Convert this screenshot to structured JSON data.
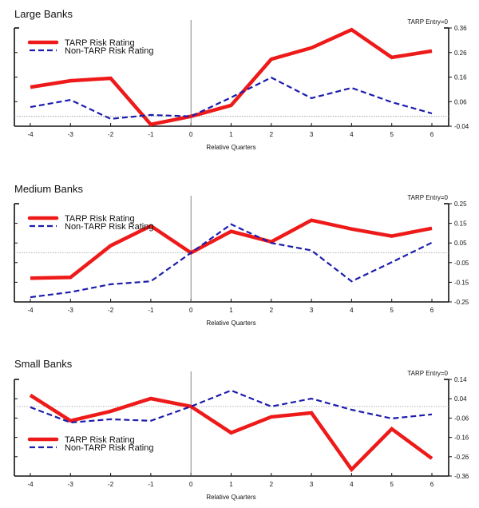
{
  "chart_data": [
    {
      "type": "line",
      "title": "Large Banks",
      "xlabel": "Relative Quarters",
      "ylabel": "",
      "annotation": "TARP Entry=0",
      "x": [
        -4,
        -3,
        -2,
        -1,
        0,
        1,
        2,
        3,
        4,
        5,
        6
      ],
      "xticks": [
        "-4",
        "-3",
        "-2",
        "-1",
        "0",
        "1",
        "2",
        "3",
        "4",
        "5",
        "6"
      ],
      "yticks": [
        "0.36",
        "0.26",
        "0.16",
        "0.06",
        "-0.04"
      ],
      "ytick_values": [
        0.36,
        0.26,
        0.16,
        0.06,
        -0.04
      ],
      "ylim": [
        -0.04,
        0.36
      ],
      "y_axis_side": "right",
      "legend_position": "top-left",
      "reference_line_y": 0,
      "reference_line_x": 0,
      "series": [
        {
          "name": "TARP Risk Rating",
          "color": "#ee1a1a",
          "style": "solid",
          "values": [
            0.119,
            0.145,
            0.155,
            -0.033,
            0.0,
            0.045,
            0.233,
            0.279,
            0.353,
            0.24,
            0.266
          ]
        },
        {
          "name": "Non-TARP Risk Rating",
          "color": "#1c1cae",
          "style": "dashed",
          "values": [
            0.038,
            0.067,
            -0.01,
            0.006,
            0.0,
            0.077,
            0.158,
            0.074,
            0.116,
            0.058,
            0.012
          ]
        }
      ]
    },
    {
      "type": "line",
      "title": "Medium Banks",
      "xlabel": "Relative Quarters",
      "ylabel": "",
      "annotation": "TARP Entry=0",
      "x": [
        -4,
        -3,
        -2,
        -1,
        0,
        1,
        2,
        3,
        4,
        5,
        6
      ],
      "xticks": [
        "-4",
        "-3",
        "-2",
        "-1",
        "0",
        "1",
        "2",
        "3",
        "4",
        "5",
        "6"
      ],
      "yticks": [
        "0.25",
        "0.15",
        "0.05",
        "-0.05",
        "-0.15",
        "-0.25"
      ],
      "ytick_values": [
        0.25,
        0.15,
        0.05,
        -0.05,
        -0.15,
        -0.25
      ],
      "ylim": [
        -0.25,
        0.25
      ],
      "y_axis_side": "right",
      "legend_position": "top-left",
      "reference_line_y": 0,
      "reference_line_x": 0,
      "series": [
        {
          "name": "TARP Risk Rating",
          "color": "#ee1a1a",
          "style": "solid",
          "values": [
            -0.129,
            -0.125,
            0.036,
            0.137,
            0.0,
            0.109,
            0.056,
            0.166,
            0.121,
            0.085,
            0.125
          ]
        },
        {
          "name": "Non-TARP Risk Rating",
          "color": "#1c1cae",
          "style": "dashed",
          "values": [
            -0.226,
            -0.2,
            -0.16,
            -0.145,
            0.0,
            0.145,
            0.05,
            0.012,
            -0.145,
            -0.048,
            0.052
          ]
        }
      ]
    },
    {
      "type": "line",
      "title": "Small Banks",
      "xlabel": "Relative Quarters",
      "ylabel": "",
      "annotation": "TARP Entry=0",
      "x": [
        -4,
        -3,
        -2,
        -1,
        0,
        1,
        2,
        3,
        4,
        5,
        6
      ],
      "xticks": [
        "-4",
        "-3",
        "-2",
        "-1",
        "0",
        "1",
        "2",
        "3",
        "4",
        "5",
        "6"
      ],
      "yticks": [
        "0.14",
        "0.04",
        "-0.06",
        "-0.16",
        "-0.26",
        "-0.36"
      ],
      "ytick_values": [
        0.14,
        0.04,
        -0.06,
        -0.16,
        -0.26,
        -0.36
      ],
      "ylim": [
        -0.36,
        0.14
      ],
      "y_axis_side": "right",
      "legend_position": "bottom-left",
      "reference_line_y": 0,
      "reference_line_x": 0,
      "series": [
        {
          "name": "TARP Risk Rating",
          "color": "#ee1a1a",
          "style": "solid",
          "values": [
            0.058,
            -0.074,
            -0.025,
            0.041,
            0.0,
            -0.136,
            -0.054,
            -0.033,
            -0.326,
            -0.116,
            -0.269
          ]
        },
        {
          "name": "Non-TARP Risk Rating",
          "color": "#1c1cae",
          "style": "dashed",
          "values": [
            -0.004,
            -0.083,
            -0.066,
            -0.074,
            0.0,
            0.083,
            0.0,
            0.041,
            -0.017,
            -0.062,
            -0.041
          ]
        }
      ]
    }
  ]
}
